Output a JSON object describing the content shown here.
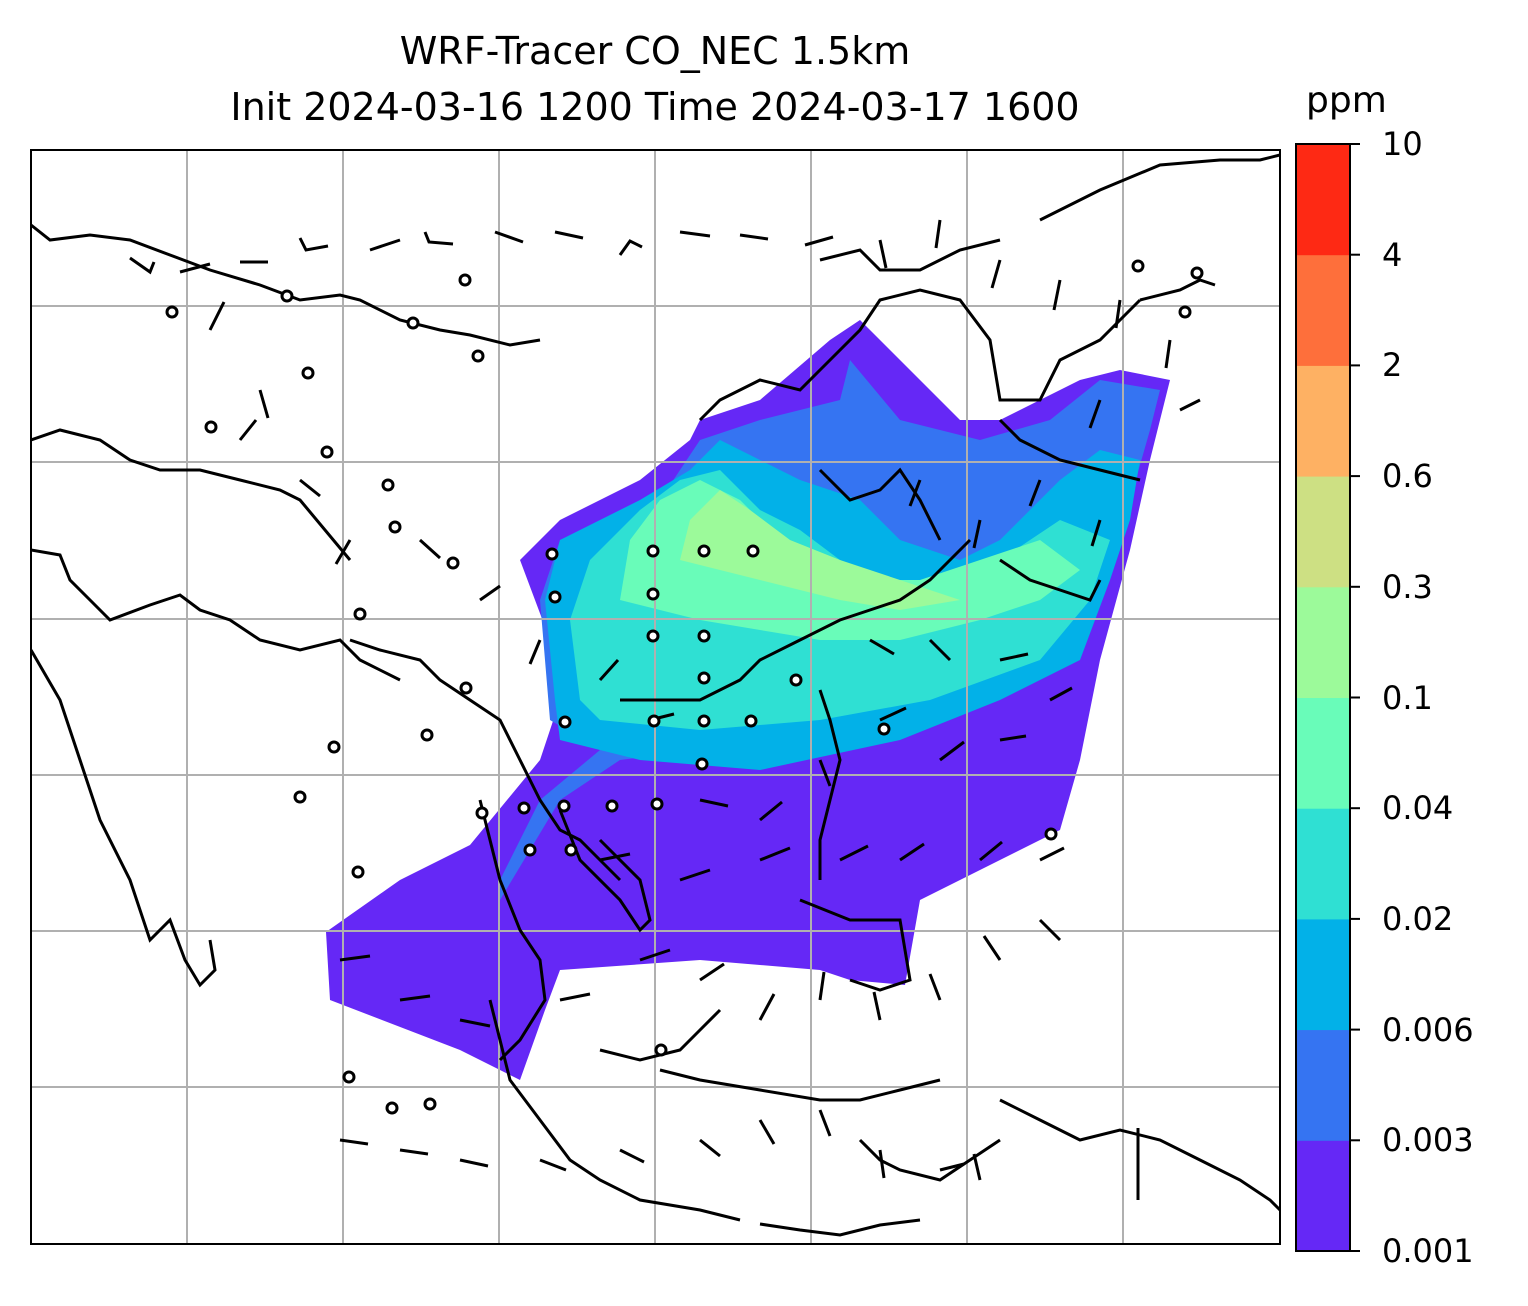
{
  "title": {
    "line1": "WRF-Tracer CO_NEC 1.5km",
    "line2": "Init 2024-03-16 1200 Time 2024-03-17 1600"
  },
  "colorbar": {
    "unit": "ppm",
    "ticks": [
      "0.001",
      "0.003",
      "0.006",
      "0.02",
      "0.04",
      "0.1",
      "0.3",
      "0.6",
      "2",
      "4",
      "10"
    ],
    "colors": [
      "#6528f6",
      "#3574f2",
      "#02b1e8",
      "#2fe0d3",
      "#69fcb9",
      "#9cfa9a",
      "#cde083",
      "#feb163",
      "#fe6f3b",
      "#fe2914"
    ]
  },
  "map": {
    "grid": true,
    "coastlines": true,
    "wind_barbs": true
  }
}
